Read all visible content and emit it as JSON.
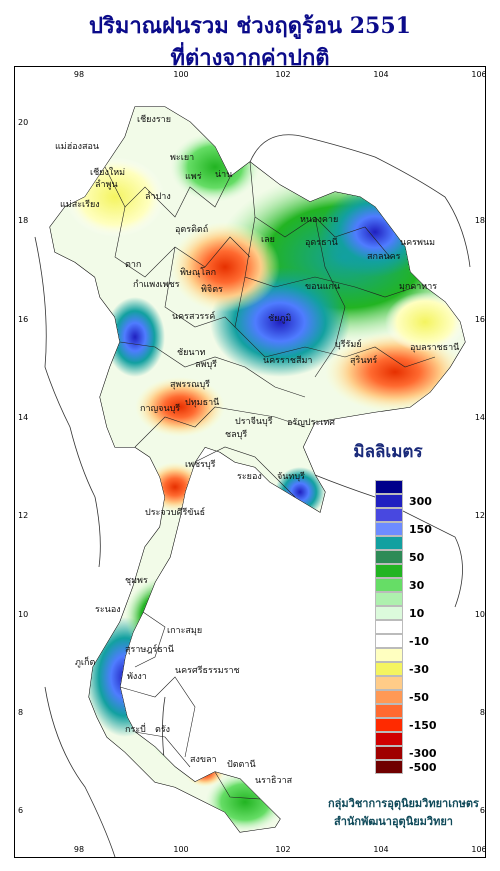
{
  "title_line1": "ปริมาณฝนรวม ช่วงฤดูร้อน 2551",
  "title_line2": "ที่ต่างจากค่าปกติ",
  "legend": {
    "title": "มิลลิเมตร",
    "labels": [
      "300",
      "150",
      "50",
      "30",
      "10",
      "-10",
      "-30",
      "-50",
      "-150",
      "-300",
      "-500"
    ],
    "colors": [
      "#00008b",
      "#2020c0",
      "#4848e0",
      "#6e8cff",
      "#12a0a0",
      "#2e8b57",
      "#22b422",
      "#66dd66",
      "#aef0ae",
      "#dcfadc",
      "#ffffff",
      "#ffffff",
      "#ffffc0",
      "#f4f460",
      "#ffcc88",
      "#ff9955",
      "#ff6a30",
      "#ff2a00",
      "#d00000",
      "#a00000",
      "#700000"
    ]
  },
  "axes": {
    "lon_ticks": [
      "98",
      "100",
      "102",
      "104",
      "106"
    ],
    "lat_ticks": [
      "20",
      "18",
      "16",
      "14",
      "12",
      "10",
      "8",
      "6"
    ]
  },
  "places": [
    "เชียงราย",
    "แม่ฮ่องสอน",
    "เชียงใหม่",
    "พะเยา",
    "น่าน",
    "ลำพูน",
    "ลำปาง",
    "แพร่",
    "แม่สะเรียง",
    "อุตรดิตถ์",
    "หนองคาย",
    "อุดรธานี",
    "นครพนม",
    "สกลนคร",
    "เลย",
    "ตาก",
    "พิษณุโลก",
    "มุกดาหาร",
    "กำแพงเพชร",
    "พิจิตร",
    "ขอนแก่น",
    "นครสวรรค์",
    "ชัยภูมิ",
    "อุบลราชธานี",
    "ชัยนาท",
    "บุรีรัมย์",
    "สุรินทร์",
    "ลพบุรี",
    "นครราชสีมา",
    "สุพรรณบุรี",
    "กาญจนบุรี",
    "ปทุมธานี",
    "ปราจีนบุรี",
    "อรัญประเทศ",
    "ชลบุรี",
    "เพชรบุรี",
    "ระยอง",
    "จันทบุรี",
    "ประจวบคีรีขันธ์",
    "ชุมพร",
    "ระนอง",
    "เกาะสมุย",
    "สุราษฎร์ธานี",
    "ภูเก็ต",
    "พังงา",
    "นครศรีธรรมราช",
    "กระบี่",
    "ตรัง",
    "สงขลา",
    "ปัตตานี",
    "นราธิวาส"
  ],
  "credit_line1": "กลุ่มวิชาการอุตุนิยมวิทยาเกษตร",
  "credit_line2": "สำนักพัฒนาอุตุนิยมวิทยา",
  "colors": {
    "title": "#0b0b8a",
    "credit": "#104a5a",
    "province_border": "#222222",
    "coastline": "#333333"
  }
}
